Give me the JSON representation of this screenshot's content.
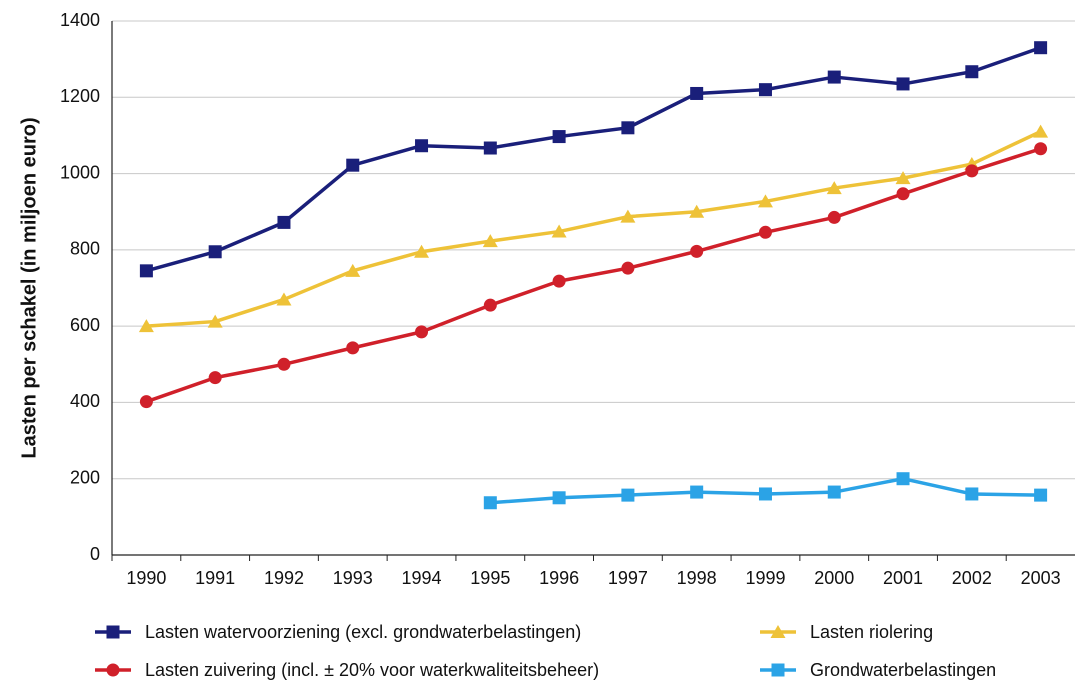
{
  "chart_data": {
    "type": "line",
    "y_label": "Lasten per schakel (in miljoen euro)",
    "categories": [
      "1990",
      "1991",
      "1992",
      "1993",
      "1994",
      "1995",
      "1996",
      "1997",
      "1998",
      "1999",
      "2000",
      "2001",
      "2002",
      "2003"
    ],
    "series": [
      {
        "name": "Lasten watervoorziening (excl. grondwaterbelastingen)",
        "color": "#1a1f7a",
        "marker": "square",
        "values": [
          745,
          795,
          872,
          1022,
          1073,
          1067,
          1097,
          1120,
          1210,
          1220,
          1253,
          1235,
          1267,
          1330
        ]
      },
      {
        "name": "Lasten riolering",
        "color": "#eec238",
        "marker": "triangle",
        "values": [
          600,
          612,
          670,
          745,
          795,
          823,
          848,
          887,
          900,
          927,
          962,
          988,
          1025,
          1110
        ]
      },
      {
        "name": "Lasten zuivering (incl. ± 20% voor waterkwaliteitsbeheer)",
        "color": "#d0202a",
        "marker": "circle",
        "values": [
          402,
          465,
          500,
          543,
          585,
          655,
          718,
          752,
          796,
          846,
          885,
          947,
          1007,
          1065
        ]
      },
      {
        "name": "Grondwaterbelastingen",
        "color": "#2ba3e6",
        "marker": "square",
        "values": [
          null,
          null,
          null,
          null,
          null,
          137,
          150,
          157,
          165,
          160,
          165,
          200,
          160,
          157
        ]
      }
    ],
    "ylim": [
      0,
      1400
    ],
    "yticks": [
      0,
      200,
      400,
      600,
      800,
      1000,
      1200,
      1400
    ],
    "grid": true
  }
}
